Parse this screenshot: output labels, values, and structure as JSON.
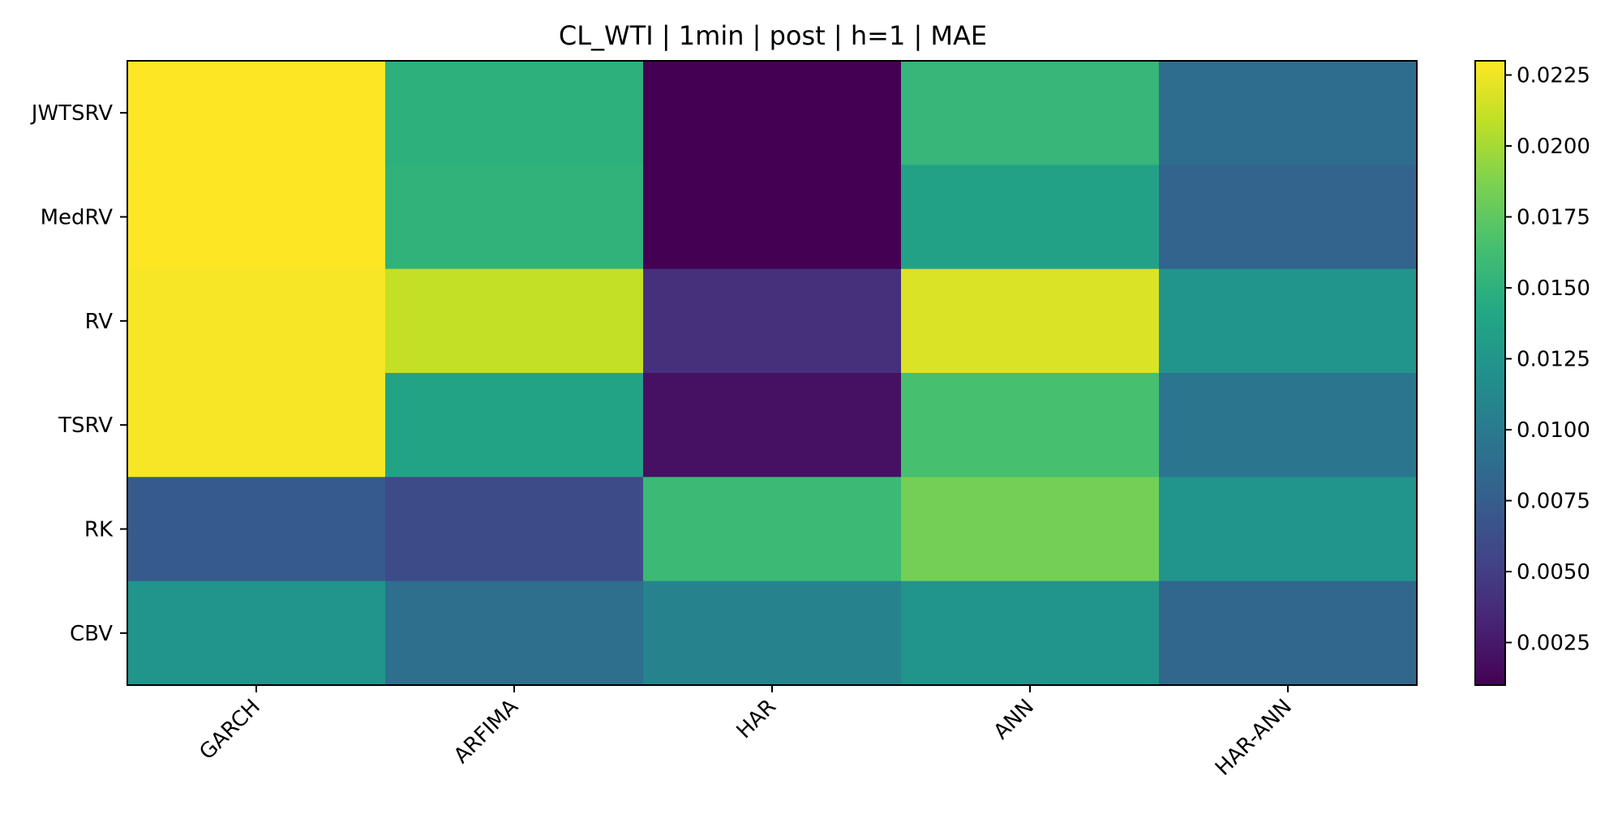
{
  "chart_data": {
    "type": "heatmap",
    "title": "CL_WTI | 1min | post | h=1 | MAE",
    "xlabel": "",
    "ylabel": "",
    "columns": [
      "GARCH",
      "ARFIMA",
      "HAR",
      "ANN",
      "HAR-ANN"
    ],
    "rows": [
      "JWTSRV",
      "MedRV",
      "RV",
      "TSRV",
      "RK",
      "CBV"
    ],
    "values": [
      [
        0.023,
        0.015,
        0.001,
        0.0155,
        0.0088
      ],
      [
        0.023,
        0.0152,
        0.001,
        0.0135,
        0.008
      ],
      [
        0.0228,
        0.021,
        0.004,
        0.0218,
        0.0123
      ],
      [
        0.0228,
        0.0137,
        0.002,
        0.0165,
        0.0096
      ],
      [
        0.0072,
        0.006,
        0.0158,
        0.0183,
        0.0123
      ],
      [
        0.0123,
        0.009,
        0.0108,
        0.0123,
        0.0083
      ]
    ],
    "colorbar": {
      "colormap": "viridis",
      "vmin": 0.001,
      "vmax": 0.023,
      "ticks": [
        "0.0025",
        "0.0050",
        "0.0075",
        "0.0100",
        "0.0125",
        "0.0150",
        "0.0175",
        "0.0200",
        "0.0225"
      ]
    },
    "grid": false,
    "legend": "none"
  }
}
